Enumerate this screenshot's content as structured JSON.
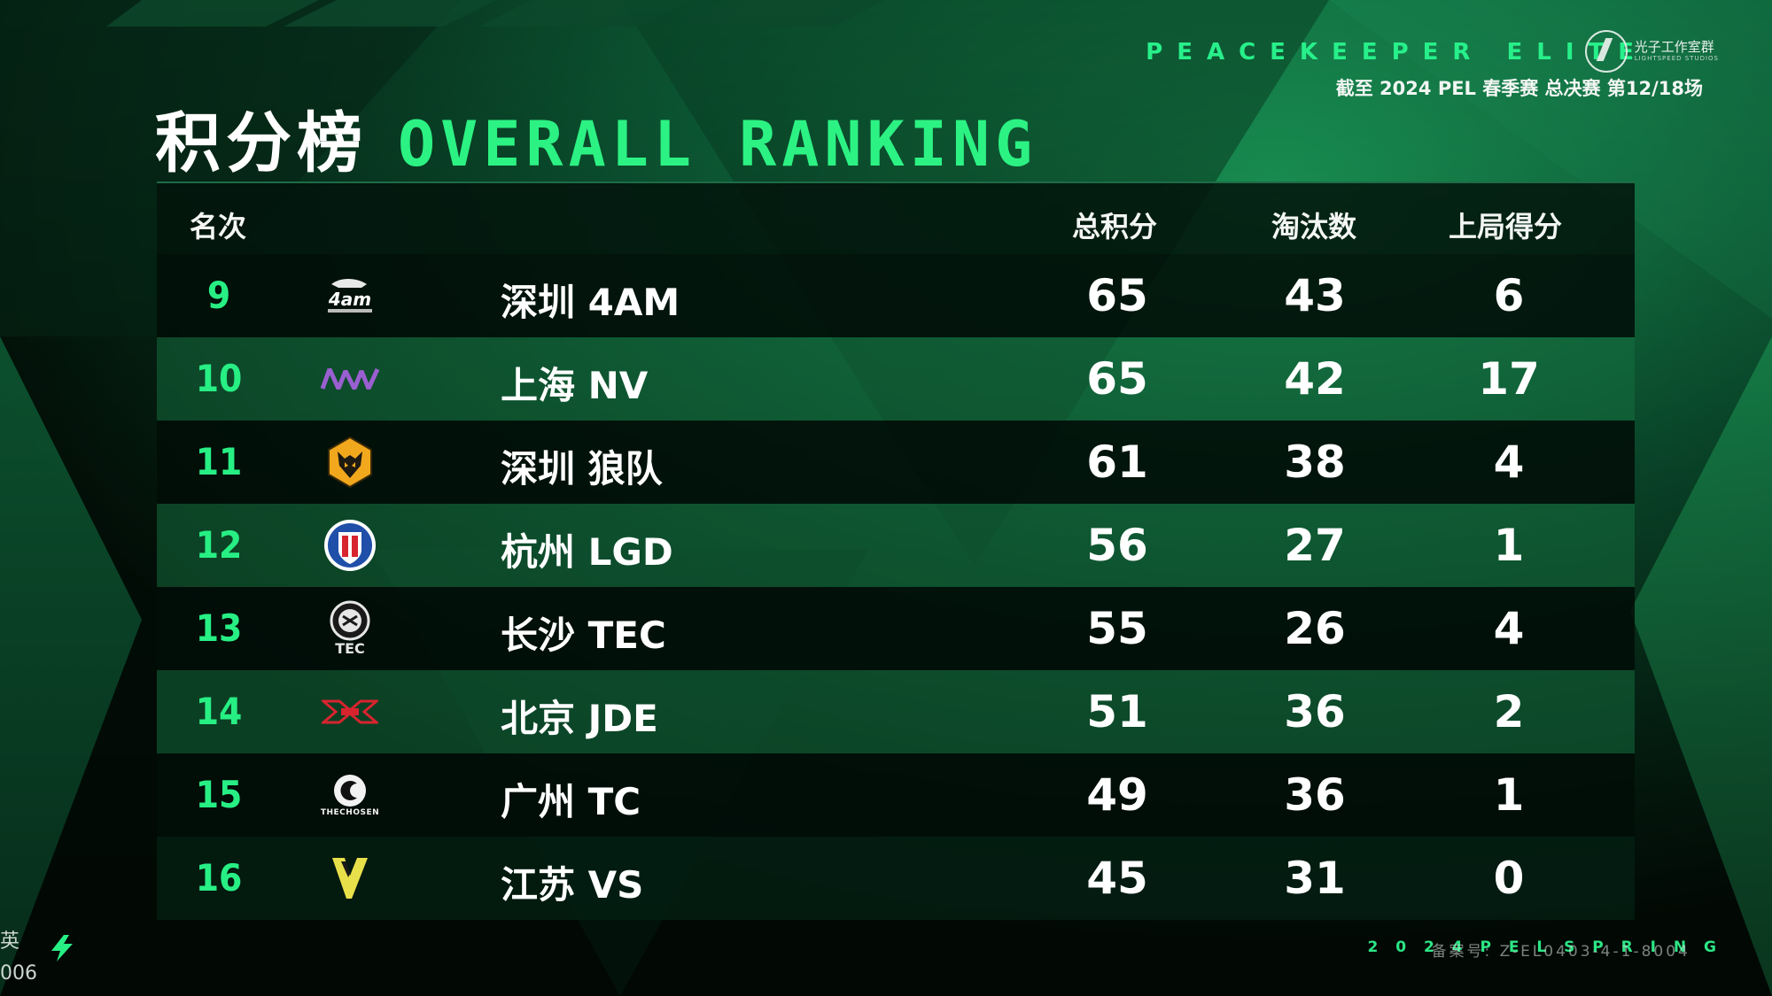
{
  "header": {
    "brand": "PEACEKEEPER ELITE",
    "studio_name": "光子工作室群",
    "studio_sub": "LIGHTSPEED STUDIOS",
    "subtitle": "截至 2024 PEL 春季赛 总决赛 第12/18场",
    "title_cn": "积分榜",
    "title_en": "OVERALL RANKING"
  },
  "table": {
    "columns": {
      "rank": "名次",
      "total": "总积分",
      "kills": "淘汰数",
      "last": "上局得分"
    },
    "rows": [
      {
        "rank": "9",
        "team": "深圳 4AM",
        "logo": "4am-logo",
        "total": "65",
        "kills": "43",
        "last": "6"
      },
      {
        "rank": "10",
        "team": "上海 NV",
        "logo": "nv-logo",
        "total": "65",
        "kills": "42",
        "last": "17"
      },
      {
        "rank": "11",
        "team": "深圳 狼队",
        "logo": "wolves-logo",
        "total": "61",
        "kills": "38",
        "last": "4"
      },
      {
        "rank": "12",
        "team": "杭州 LGD",
        "logo": "lgd-logo",
        "total": "56",
        "kills": "27",
        "last": "1"
      },
      {
        "rank": "13",
        "team": "长沙 TEC",
        "logo": "tec-logo",
        "logo_text": "TEC",
        "total": "55",
        "kills": "26",
        "last": "4"
      },
      {
        "rank": "14",
        "team": "北京 JDE",
        "logo": "jde-logo",
        "total": "51",
        "kills": "36",
        "last": "2"
      },
      {
        "rank": "15",
        "team": "广州 TC",
        "logo": "tc-logo",
        "logo_text": "THECHOSEN",
        "total": "49",
        "kills": "36",
        "last": "1"
      },
      {
        "rank": "16",
        "team": "江苏 VS",
        "logo": "vs-logo",
        "total": "45",
        "kills": "31",
        "last": "0"
      }
    ]
  },
  "footer": {
    "left_line1": "英",
    "left_line2": "006",
    "right_text": "2 0 2 4 P E L S P R I N G",
    "record_text": "备案号: Z-EL0403-4-1-8004"
  },
  "colors": {
    "accent": "#27ef84",
    "row_dark": "#010e08",
    "row_light": "#156f40"
  }
}
